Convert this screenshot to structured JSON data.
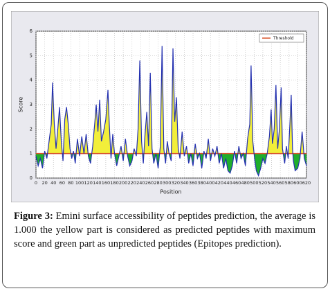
{
  "chart_data": {
    "type": "line",
    "ylabel": "Score",
    "xlabel": "Position",
    "xlim": [
      0,
      620
    ],
    "ylim": [
      0,
      6
    ],
    "xticks": [
      0,
      20,
      40,
      60,
      80,
      100,
      120,
      140,
      160,
      180,
      200,
      220,
      240,
      260,
      280,
      300,
      320,
      340,
      360,
      380,
      400,
      420,
      440,
      460,
      480,
      500,
      520,
      540,
      560,
      580,
      600,
      620
    ],
    "yticks": [
      0,
      1,
      2,
      3,
      4,
      5,
      6
    ],
    "grid": true,
    "legend": "upper right",
    "above_color": "#f2ee3a",
    "below_color": "#1fae2c",
    "threshold": {
      "name": "Threshold",
      "value": 1,
      "color": "#d9542b"
    },
    "x": [
      0,
      5,
      10,
      15,
      20,
      25,
      30,
      35,
      38,
      42,
      46,
      50,
      54,
      58,
      62,
      66,
      70,
      74,
      78,
      82,
      86,
      90,
      95,
      100,
      105,
      110,
      115,
      120,
      125,
      130,
      135,
      138,
      142,
      146,
      150,
      155,
      160,
      165,
      168,
      172,
      176,
      180,
      185,
      190,
      195,
      200,
      205,
      210,
      215,
      220,
      225,
      230,
      234,
      238,
      242,
      246,
      250,
      254,
      258,
      262,
      266,
      270,
      275,
      280,
      285,
      289,
      293,
      297,
      301,
      305,
      310,
      314,
      318,
      322,
      326,
      330,
      335,
      340,
      345,
      350,
      355,
      360,
      365,
      370,
      375,
      380,
      385,
      390,
      395,
      400,
      405,
      410,
      415,
      420,
      425,
      430,
      435,
      440,
      445,
      450,
      455,
      460,
      465,
      470,
      475,
      480,
      485,
      490,
      493,
      497,
      501,
      505,
      510,
      515,
      520,
      525,
      530,
      535,
      539,
      542,
      546,
      550,
      554,
      558,
      562,
      565,
      570,
      574,
      578,
      582,
      585,
      588,
      590,
      594,
      600,
      605,
      610,
      615,
      620
    ],
    "series": [
      {
        "color": "#2330b0",
        "values": [
          0.9,
          0.5,
          0.8,
          0.4,
          1.1,
          0.8,
          1.5,
          2.2,
          3.9,
          2.2,
          1.2,
          2.0,
          2.9,
          1.5,
          0.7,
          2.4,
          2.9,
          2.2,
          1.2,
          0.8,
          1.1,
          0.6,
          1.6,
          0.9,
          1.7,
          1.0,
          1.8,
          0.9,
          0.6,
          1.3,
          2.3,
          3.0,
          1.9,
          3.2,
          1.5,
          1.9,
          2.4,
          3.6,
          2.2,
          0.8,
          1.8,
          1.0,
          0.5,
          0.9,
          1.3,
          0.7,
          1.6,
          0.9,
          0.5,
          0.7,
          1.2,
          0.9,
          2.0,
          4.8,
          1.5,
          0.6,
          1.8,
          2.7,
          1.3,
          4.3,
          1.2,
          0.6,
          1.0,
          0.4,
          1.3,
          5.4,
          1.2,
          0.6,
          1.5,
          1.0,
          0.7,
          5.3,
          2.3,
          3.3,
          1.2,
          0.8,
          1.9,
          0.9,
          1.3,
          0.6,
          1.0,
          0.5,
          1.4,
          0.8,
          1.0,
          0.4,
          1.1,
          0.8,
          1.6,
          0.7,
          1.2,
          0.9,
          1.3,
          0.6,
          1.0,
          0.4,
          0.8,
          0.3,
          0.2,
          0.5,
          1.1,
          0.6,
          1.3,
          0.8,
          1.0,
          0.5,
          1.6,
          2.2,
          4.6,
          1.5,
          0.8,
          0.3,
          0.1,
          0.4,
          0.8,
          0.6,
          1.0,
          1.7,
          2.8,
          1.4,
          2.0,
          3.8,
          1.2,
          2.0,
          3.7,
          1.2,
          0.6,
          1.3,
          0.8,
          2.2,
          3.4,
          1.2,
          0.7,
          0.3,
          0.4,
          0.8,
          1.9,
          0.8,
          0.5
        ]
      }
    ]
  },
  "caption": {
    "label": "Figure 3:",
    "text": "Emini surface accessibility of peptides prediction, the average is 1.000 the yellow part is considered as predicted peptides with maximum score and green part as unpredicted peptides (Epitopes prediction)."
  }
}
